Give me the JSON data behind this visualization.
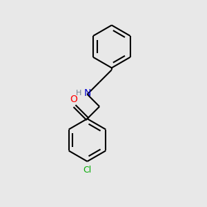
{
  "background_color": "#e8e8e8",
  "bond_color": "#000000",
  "atom_colors": {
    "O": "#ff0000",
    "N": "#0000cd",
    "Cl": "#00aa00",
    "H": "#708090"
  },
  "line_width": 1.5,
  "figsize": [
    3.0,
    3.0
  ],
  "dpi": 100
}
